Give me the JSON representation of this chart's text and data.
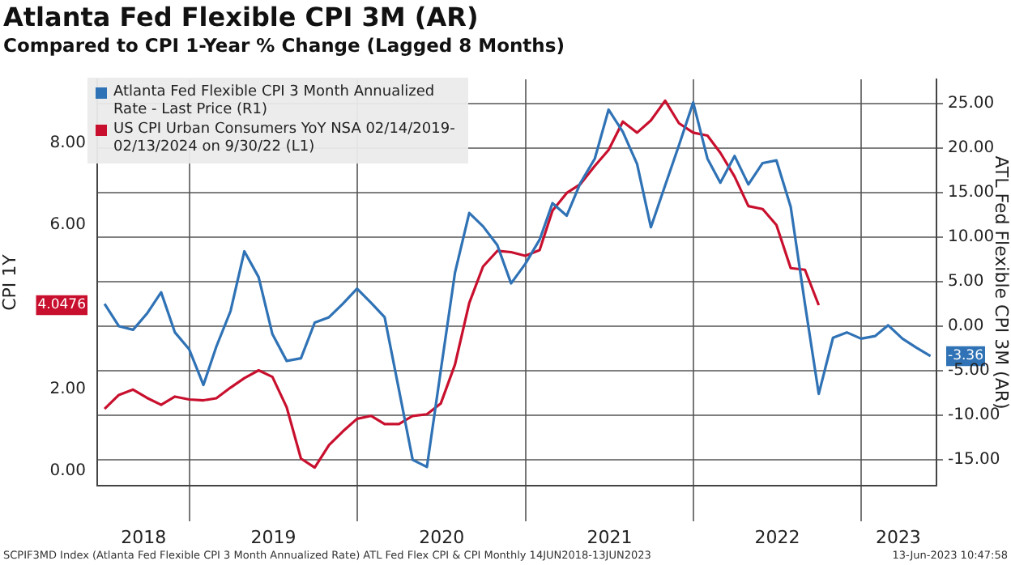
{
  "chart_data": {
    "type": "line",
    "title": "Atlanta Fed Flexible CPI 3M (AR)",
    "subtitle": "Compared to CPI 1-Year % Change (Lagged 8 Months)",
    "ylabel": "CPI 1Y",
    "y2label": "ATL Fed Flexible CPI 3M (AR)",
    "x": [
      "2018-06-30",
      "2018-07-31",
      "2018-08-31",
      "2018-09-30",
      "2018-10-31",
      "2018-11-30",
      "2018-12-31",
      "2019-01-31",
      "2019-02-28",
      "2019-03-31",
      "2019-04-30",
      "2019-05-31",
      "2019-06-30",
      "2019-07-31",
      "2019-08-31",
      "2019-09-30",
      "2019-10-31",
      "2019-11-30",
      "2019-12-31",
      "2020-01-31",
      "2020-02-29",
      "2020-03-31",
      "2020-04-30",
      "2020-05-31",
      "2020-06-30",
      "2020-07-31",
      "2020-08-31",
      "2020-09-30",
      "2020-10-31",
      "2020-11-30",
      "2020-12-31",
      "2021-01-31",
      "2021-02-28",
      "2021-03-31",
      "2021-04-30",
      "2021-05-31",
      "2021-06-30",
      "2021-07-31",
      "2021-08-31",
      "2021-09-30",
      "2021-10-31",
      "2021-11-30",
      "2021-12-31",
      "2022-01-31",
      "2022-02-28",
      "2022-03-31",
      "2022-04-30",
      "2022-05-31",
      "2022-06-30",
      "2022-07-31",
      "2022-08-31",
      "2022-09-30",
      "2022-10-31",
      "2022-11-30",
      "2022-12-31",
      "2023-01-31",
      "2023-02-28",
      "2023-03-31",
      "2023-04-30",
      "2023-05-31"
    ],
    "series": [
      {
        "name": "Atlanta Fed Flexible CPI 3 Month Annualized Rate - Last Price (R1)",
        "color": "#2f72b5",
        "axis": "y2",
        "values": [
          2.5,
          0.0,
          -0.4,
          1.4,
          3.8,
          -0.7,
          -2.6,
          -6.6,
          -2.3,
          1.7,
          8.4,
          5.5,
          -0.9,
          -3.9,
          -3.6,
          0.4,
          1.0,
          2.5,
          4.2,
          2.6,
          1.0,
          -7.1,
          -15.0,
          -15.8,
          -5.0,
          6.0,
          12.7,
          11.2,
          9.1,
          4.8,
          7.0,
          9.7,
          13.8,
          12.4,
          16.1,
          18.8,
          24.3,
          21.8,
          18.2,
          11.1,
          15.8,
          20.3,
          25.1,
          18.8,
          16.1,
          19.1,
          15.9,
          18.3,
          18.6,
          13.4,
          2.5,
          -7.6,
          -1.3,
          -0.7,
          -1.4,
          -1.1,
          0.1,
          -1.4,
          -2.4,
          -3.36
        ]
      },
      {
        "name": "US CPI Urban Consumers YoY NSA 02/14/2019-02/13/2024 on 9/30/22 (L1)",
        "color": "#c8102e",
        "values": [
          1.52,
          1.86,
          1.99,
          1.79,
          1.62,
          1.82,
          1.75,
          1.73,
          1.78,
          2.04,
          2.27,
          2.46,
          2.3,
          1.56,
          0.31,
          0.09,
          0.64,
          0.97,
          1.28,
          1.35,
          1.15,
          1.15,
          1.35,
          1.39,
          1.65,
          2.6,
          4.1,
          4.99,
          5.37,
          5.34,
          5.25,
          5.39,
          6.35,
          6.78,
          7.0,
          7.44,
          7.83,
          8.52,
          8.25,
          8.55,
          9.03,
          8.48,
          8.25,
          8.18,
          7.76,
          7.18,
          6.46,
          6.39,
          6.0,
          4.95,
          4.91,
          4.0476,
          null,
          null,
          null,
          null,
          null,
          null,
          null,
          null
        ]
      }
    ],
    "xlim": [
      "2018-06-14",
      "2023-06-13"
    ],
    "xticks": [
      {
        "value": "2018-09-23",
        "label": "2018"
      },
      {
        "value": "2019-01-01",
        "label": null
      },
      {
        "value": "2019-07-02",
        "label": "2019"
      },
      {
        "value": "2020-01-01",
        "label": null
      },
      {
        "value": "2020-07-02",
        "label": "2020"
      },
      {
        "value": "2021-01-01",
        "label": null
      },
      {
        "value": "2021-07-02",
        "label": "2021"
      },
      {
        "value": "2022-01-01",
        "label": null
      },
      {
        "value": "2022-07-02",
        "label": "2022"
      },
      {
        "value": "2023-01-01",
        "label": null
      },
      {
        "value": "2023-03-22",
        "label": "2023"
      }
    ],
    "ylim": [
      -0.35,
      9.55
    ],
    "yticks": [
      {
        "value": 0,
        "label": "0.00"
      },
      {
        "value": 2,
        "label": "2.00"
      },
      {
        "value": 4.0476,
        "label": "4.0476"
      },
      {
        "value": 6,
        "label": "6.00"
      },
      {
        "value": 8,
        "label": "8.00"
      }
    ],
    "y2lim": [
      -17.9,
      27.7
    ],
    "y2ticks": [
      {
        "value": 25,
        "label": "25.00"
      },
      {
        "value": 20,
        "label": "20.00"
      },
      {
        "value": 15,
        "label": "15.00"
      },
      {
        "value": 10,
        "label": "10.00"
      },
      {
        "value": 5,
        "label": "5.00"
      },
      {
        "value": 0,
        "label": "0.00"
      },
      {
        "value": -3.36,
        "label": "-3.36"
      },
      {
        "value": -5,
        "label": "-5.00"
      },
      {
        "value": -10,
        "label": "-10.00"
      },
      {
        "value": -15,
        "label": "-15.00"
      }
    ],
    "grid": true,
    "legend": "top left",
    "marker": "none",
    "line_style": "solid",
    "annotations": [
      "SCPIF3MD Index (Atlanta Fed Flexible CPI 3 Month Annualized Rate) ATL Fed Flex CPI & CPI  Monthly 14JUN2018-13JUN2023",
      "13-Jun-2023 10:47:58"
    ]
  }
}
